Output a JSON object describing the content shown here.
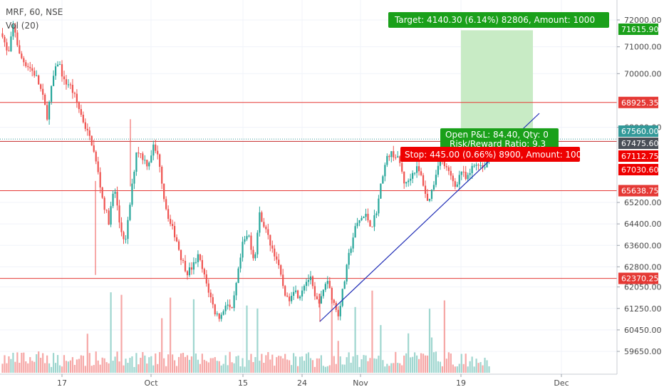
{
  "legend": {
    "symbol": "MRF, 60, NSE",
    "volume": "Vol (20)"
  },
  "colors": {
    "up": "#26a69a",
    "down": "#ef5350",
    "up_vol": "#9fd6cf",
    "down_vol": "#f6a7a6",
    "hline": "#e53935",
    "trend": "#1e2bb5",
    "target_zone": "#c8ebc5",
    "target_label": "#1aa01a",
    "stop_label": "#ee0000",
    "dotted": "#3a9c9c",
    "dark_tag": "#4a4f57",
    "teal_tag": "#339999"
  },
  "chart_data": {
    "type": "candlestick",
    "title": "MRF, 60, NSE",
    "y_range": [
      59000,
      72400
    ],
    "y_ticks": [
      "72000.00",
      "71000.00",
      "70000.00",
      "68000.00",
      "65200.00",
      "64400.00",
      "63600.00",
      "62800.00",
      "62050.00",
      "61250.00",
      "60450.00",
      "59650.00"
    ],
    "x_ticks": [
      "17",
      "Oct",
      "15",
      "24",
      "Nov",
      "19",
      "Dec"
    ],
    "horizontal_lines": [
      {
        "price": 68925.35,
        "label": "68925.35"
      },
      {
        "price": 65638.75,
        "label": "65638.75"
      },
      {
        "price": 62370.25,
        "label": "62370.25"
      },
      {
        "price": 67475.6,
        "label": "67475.60"
      }
    ],
    "price_tags": [
      {
        "price": 71615.9,
        "label": "71615.90",
        "kind": "target"
      },
      {
        "price": 67560.0,
        "label": "67560.00",
        "kind": "current"
      },
      {
        "price": 67475.6,
        "label": "67475.60",
        "kind": "entry"
      },
      {
        "price": 67112.75,
        "label": "67112.75",
        "kind": "stop"
      },
      {
        "price": 67030.6,
        "label": "67030.60",
        "kind": "stop"
      }
    ],
    "position": {
      "target_label": "Target: 4140.30 (6.14%) 82806, Amount: 1000",
      "pnl_label": "Open P&L: 84.40, Qty: 0",
      "ratio_label": "Risk/Reward Ratio: 9.3",
      "stop_label": "Stop: 445.00 (0.66%) 8900, Amount: 1000"
    },
    "path": [
      71500,
      70600,
      71900,
      70700,
      70400,
      70200,
      69900,
      69300,
      68400,
      69800,
      70500,
      69700,
      69600,
      69100,
      68500,
      67900,
      67400,
      66400,
      65200,
      64500,
      65800,
      64300,
      63700,
      65500,
      67200,
      66900,
      66600,
      67300,
      66800,
      65200,
      64400,
      63900,
      63100,
      62600,
      62800,
      63200,
      62500,
      61800,
      61100,
      60900,
      61500,
      61100,
      62400,
      63700,
      64000,
      63000,
      64800,
      64200,
      63600,
      63100,
      62200,
      61500,
      62000,
      61700,
      62200,
      62400,
      61500,
      61600,
      62400,
      61600,
      61000,
      62100,
      63300,
      64200,
      64600,
      64700,
      64300,
      65000,
      66300,
      67000,
      67000,
      66700,
      65800,
      66200,
      66500,
      66100,
      65200,
      65800,
      66800,
      66600,
      66200,
      65800,
      66400,
      66000,
      66500,
      66700,
      66500,
      66900
    ]
  }
}
